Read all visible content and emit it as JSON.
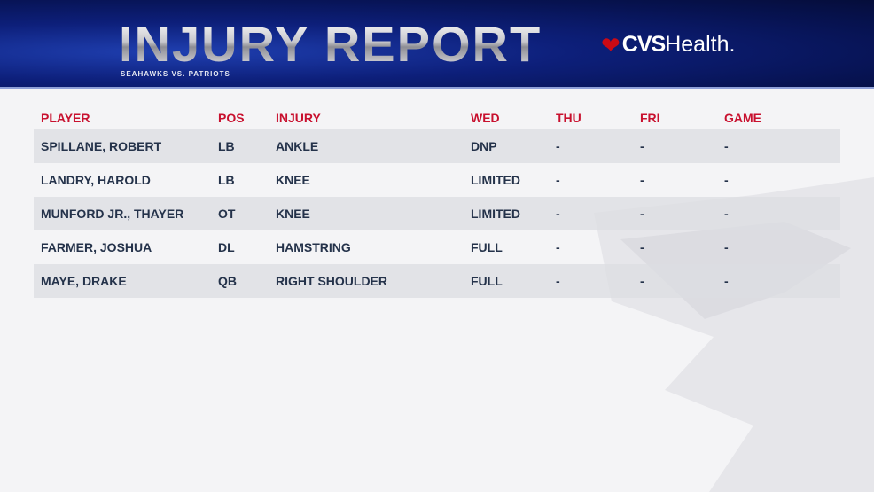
{
  "header": {
    "title": "INJURY REPORT",
    "subtitle": "SEAHAWKS VS. PATRIOTS",
    "sponsor_bold": "CVS",
    "sponsor_light": "Health",
    "sponsor_mark": "."
  },
  "colors": {
    "accent": "#c8102e",
    "header_bg": "#0d1f7a",
    "text": "#24324a"
  },
  "table": {
    "columns": [
      "PLAYER",
      "POS",
      "INJURY",
      "WED",
      "THU",
      "FRI",
      "GAME"
    ],
    "rows": [
      [
        "SPILLANE, ROBERT",
        "LB",
        "ANKLE",
        "DNP",
        "-",
        "-",
        "-"
      ],
      [
        "LANDRY, HAROLD",
        "LB",
        "KNEE",
        "LIMITED",
        "-",
        "-",
        "-"
      ],
      [
        "MUNFORD JR., THAYER",
        "OT",
        "KNEE",
        "LIMITED",
        "-",
        "-",
        "-"
      ],
      [
        "FARMER, JOSHUA",
        "DL",
        "HAMSTRING",
        "FULL",
        "-",
        "-",
        "-"
      ],
      [
        "MAYE, DRAKE",
        "QB",
        "RIGHT SHOULDER",
        "FULL",
        "-",
        "-",
        "-"
      ]
    ]
  }
}
